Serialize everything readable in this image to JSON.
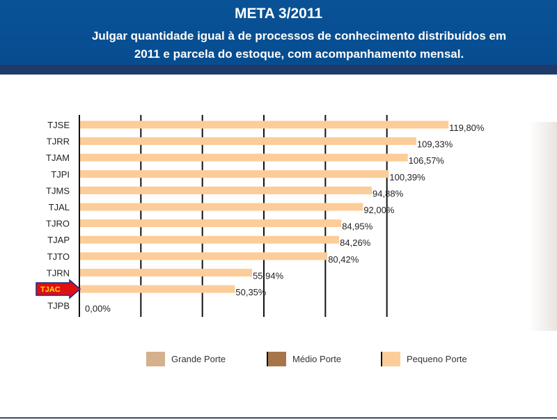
{
  "header": {
    "title": "META 3/2011",
    "subtitle_line1": "Julgar quantidade igual à de processos de conhecimento distribuídos em",
    "subtitle_line2": "2011 e parcela do estoque, com acompanhamento mensal."
  },
  "colors": {
    "header_bg": "#0a5296",
    "bar_pequeno": "#fccc99",
    "legend_grande": "#d4b08c",
    "legend_medio": "#a6764a",
    "legend_pequeno": "#fccc99",
    "marker_fill": "#e01010",
    "marker_text": "#ffe000"
  },
  "chart_data": {
    "type": "bar",
    "orientation": "horizontal",
    "categories": [
      "TJSE",
      "TJRR",
      "TJAM",
      "TJPI",
      "TJMS",
      "TJAL",
      "TJRO",
      "TJAP",
      "TJTO",
      "TJRN",
      "TJAC",
      "TJPB"
    ],
    "values": [
      119.8,
      109.33,
      106.57,
      100.39,
      94.88,
      92.0,
      84.95,
      84.26,
      80.42,
      55.94,
      50.35,
      0.0
    ],
    "value_labels": [
      "119,80%",
      "109,33%",
      "106,57%",
      "100,39%",
      "94,88%",
      "92,00%",
      "84,95%",
      "84,26%",
      "80,42%",
      "55,94%",
      "50,35%",
      "0,00%"
    ],
    "xlim": [
      0,
      120
    ],
    "gridline_values": [
      20,
      40,
      60,
      80,
      100
    ],
    "highlighted_category": "TJAC",
    "marker_label": "TJAC",
    "legend": [
      {
        "name": "Grande Porte",
        "color": "#d4b08c"
      },
      {
        "name": "Médio Porte",
        "color": "#a6764a"
      },
      {
        "name": "Pequeno Porte",
        "color": "#fccc99"
      }
    ]
  }
}
